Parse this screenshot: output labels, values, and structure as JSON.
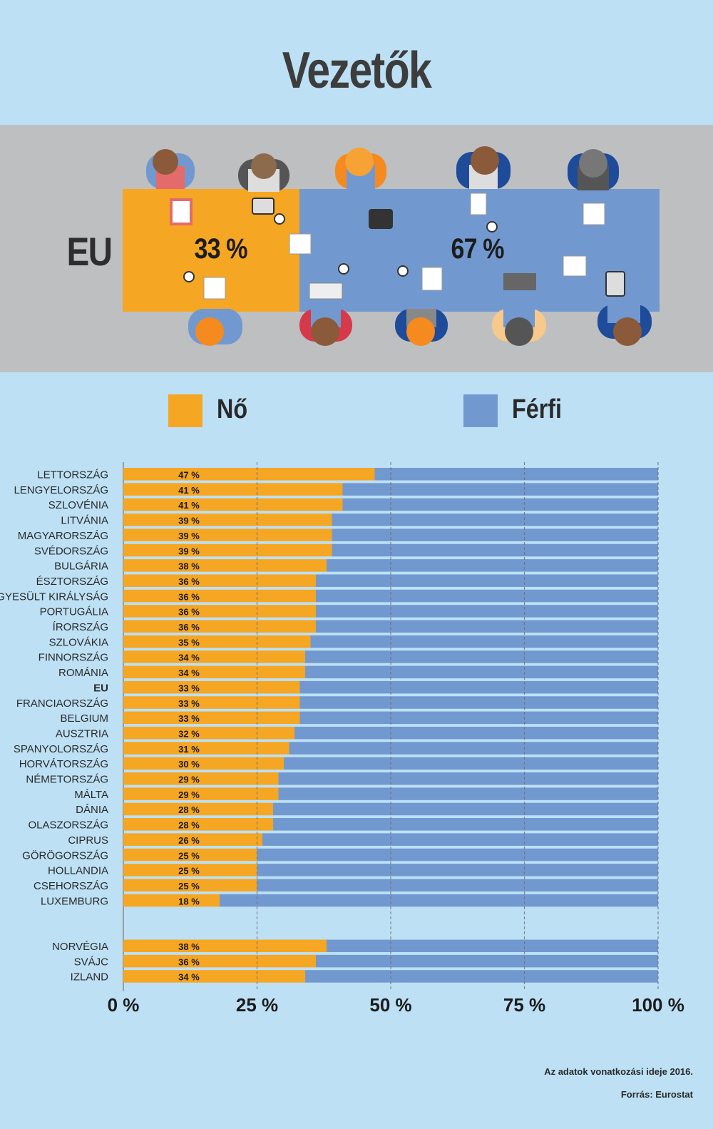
{
  "title": "Vezetők",
  "eu_summary": {
    "label": "EU",
    "female_pct_label": "33 %",
    "male_pct_label": "67 %",
    "female_value": 33,
    "male_value": 67
  },
  "legend": [
    {
      "label": "Nő",
      "color": "#f5a623"
    },
    {
      "label": "Férfi",
      "color": "#7199d0"
    }
  ],
  "colors": {
    "female": "#f5a623",
    "male": "#7199d0",
    "background": "#bde0f5",
    "hero": "#bebfc1"
  },
  "chart_data": {
    "type": "bar",
    "orientation": "horizontal",
    "stacked": true,
    "categories": [
      "LETTORSZÁG",
      "LENGYELORSZÁG",
      "SZLOVÉNIA",
      "LITVÁNIA",
      "MAGYARORSZÁG",
      "SVÉDORSZÁG",
      "BULGÁRIA",
      "ÉSZTORSZÁG",
      "EGYESÜLT KIRÁLYSÁG",
      "PORTUGÁLIA",
      "ÍRORSZÁG",
      "SZLOVÁKIA",
      "FINNORSZÁG",
      "ROMÁNIA",
      "EU",
      "FRANCIAORSZÁG",
      "BELGIUM",
      "AUSZTRIA",
      "SPANYOLORSZÁG",
      "HORVÁTORSZÁG",
      "NÉMETORSZÁG",
      "MÁLTA",
      "DÁNIA",
      "OLASZORSZÁG",
      "CIPRUS",
      "GÖRÖGORSZÁG",
      "HOLLANDIA",
      "CSEHORSZÁG",
      "LUXEMBURG",
      "NORVÉGIA",
      "SVÁJC",
      "IZLAND"
    ],
    "series": [
      {
        "name": "Nő",
        "values": [
          47,
          41,
          41,
          39,
          39,
          39,
          38,
          36,
          36,
          36,
          36,
          35,
          34,
          34,
          33,
          33,
          33,
          32,
          31,
          30,
          29,
          29,
          28,
          28,
          26,
          25,
          25,
          25,
          18,
          38,
          36,
          34
        ]
      },
      {
        "name": "Férfi",
        "values": [
          53,
          59,
          59,
          61,
          61,
          61,
          62,
          64,
          64,
          64,
          64,
          65,
          66,
          66,
          67,
          67,
          67,
          68,
          69,
          70,
          71,
          71,
          72,
          72,
          74,
          75,
          75,
          75,
          82,
          62,
          64,
          66
        ]
      }
    ],
    "value_labels": [
      "47 %",
      "41 %",
      "41 %",
      "39 %",
      "39 %",
      "39 %",
      "38 %",
      "36 %",
      "36 %",
      "36 %",
      "36 %",
      "35 %",
      "34 %",
      "34 %",
      "33 %",
      "33 %",
      "33 %",
      "32 %",
      "31 %",
      "30 %",
      "29 %",
      "29 %",
      "28 %",
      "28 %",
      "26 %",
      "25 %",
      "25 %",
      "25 %",
      "18 %",
      "38 %",
      "36 %",
      "34 %"
    ],
    "bold_categories": [
      "EU"
    ],
    "group_break_after": "LUXEMBURG",
    "xlim": [
      0,
      100
    ],
    "x_ticks": [
      0,
      25,
      50,
      75,
      100
    ],
    "x_tick_labels": [
      "0 %",
      "25 %",
      "50 %",
      "75 %",
      "100 %"
    ],
    "grid": true
  },
  "footnotes": {
    "date": "Az adatok vonatkozási ideje 2016.",
    "source": "Forrás: Eurostat"
  }
}
